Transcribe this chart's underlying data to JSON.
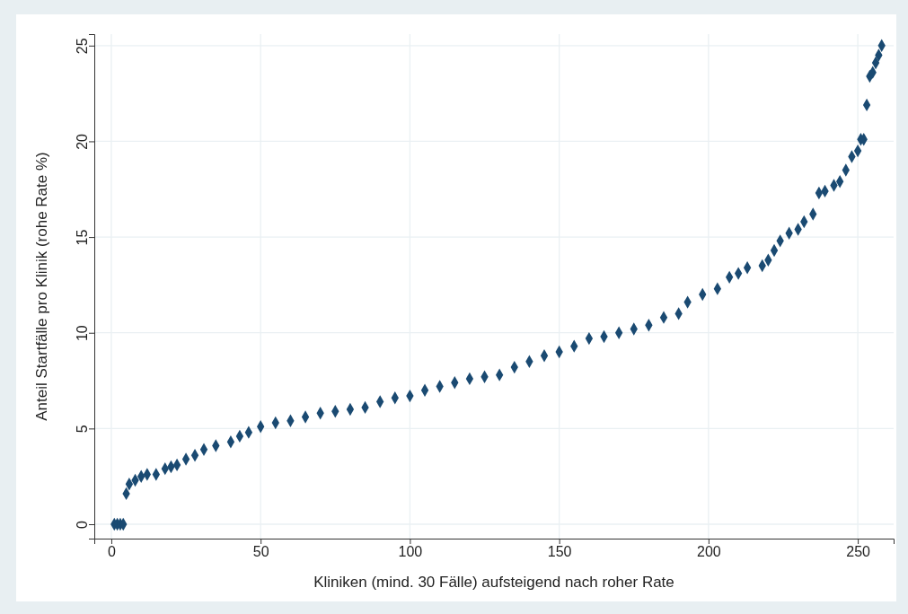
{
  "chart_data": {
    "type": "scatter",
    "xlabel": "Kliniken (mind. 30 Fälle) aufsteigend nach roher Rate",
    "ylabel": "Anteil Startfälle pro Klinik (rohe Rate %)",
    "xlim": [
      -5.7,
      262
    ],
    "ylim": [
      -0.75,
      25.6
    ],
    "xticks": [
      0,
      50,
      100,
      150,
      200,
      250
    ],
    "yticks": [
      0,
      5,
      10,
      15,
      20,
      25
    ],
    "grid": true,
    "marker": "diamond",
    "series": [
      {
        "color": "#1a4a72",
        "x": [
          1,
          2,
          3,
          4,
          5,
          6,
          8,
          10,
          12,
          15,
          18,
          20,
          22,
          25,
          28,
          31,
          35,
          40,
          43,
          46,
          50,
          55,
          60,
          65,
          70,
          75,
          80,
          85,
          90,
          95,
          100,
          105,
          110,
          115,
          120,
          125,
          130,
          135,
          140,
          145,
          150,
          155,
          160,
          165,
          170,
          175,
          180,
          185,
          190,
          193,
          198,
          203,
          207,
          210,
          213,
          218,
          220,
          222,
          224,
          227,
          230,
          232,
          235,
          237,
          239,
          242,
          244,
          246,
          248,
          250,
          251,
          252,
          253,
          254,
          255,
          256,
          257,
          258
        ],
        "values": [
          0,
          0,
          0,
          0,
          1.6,
          2.1,
          2.3,
          2.5,
          2.6,
          2.6,
          2.9,
          3.0,
          3.1,
          3.4,
          3.6,
          3.9,
          4.1,
          4.3,
          4.6,
          4.8,
          5.1,
          5.3,
          5.4,
          5.6,
          5.8,
          5.9,
          6.0,
          6.1,
          6.4,
          6.6,
          6.7,
          7.0,
          7.2,
          7.4,
          7.6,
          7.7,
          7.8,
          8.2,
          8.5,
          8.8,
          9.0,
          9.3,
          9.7,
          9.8,
          10.0,
          10.2,
          10.4,
          10.8,
          11.0,
          11.6,
          12.0,
          12.3,
          12.9,
          13.1,
          13.4,
          13.5,
          13.8,
          14.3,
          14.8,
          15.2,
          15.4,
          15.8,
          16.2,
          17.3,
          17.4,
          17.7,
          17.9,
          18.5,
          19.2,
          19.5,
          20.1,
          20.1,
          21.9,
          23.4,
          23.6,
          24.1,
          24.5,
          25.0
        ]
      }
    ]
  }
}
